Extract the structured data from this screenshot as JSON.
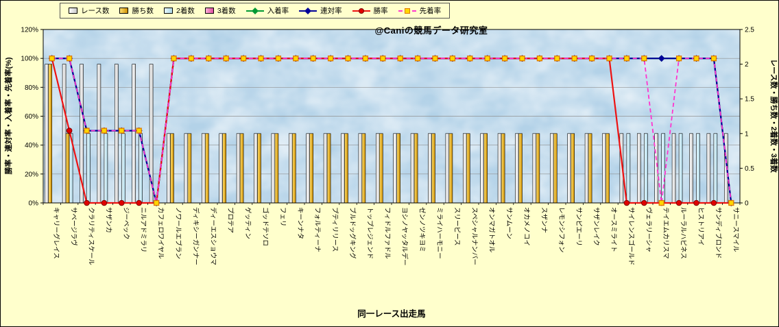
{
  "colors": {
    "page_bg": "#ffffcc",
    "plot_bg": "#b3d2e8",
    "grid": "#909090",
    "axis": "#000000",
    "watermark": "#00b7bd"
  },
  "chart_data": {
    "type": "combo (clustered bar + line)",
    "title": "",
    "x_title": "同一レース出走馬",
    "y_left_title": "勝率・連対率・入着率・先着率(%)",
    "y_right_title": "レース数・勝ち数・2着数・3着数",
    "watermark": "@Caniの競馬データ研究室",
    "legend_position": "top",
    "grid": "horizontal",
    "left_axis": {
      "min": 0,
      "max": 120,
      "step": 20,
      "suffix": "%"
    },
    "right_axis": {
      "min": 0,
      "max": 2.5,
      "step": 0.5
    },
    "categories": [
      "キャリーグレイス",
      "サベージラヴ",
      "クラリティスケール",
      "サザンカ",
      "ジーベック",
      "ニルアドミラリ",
      "カフェロワイヤル",
      "ノワールエブラン",
      "ディキシーガンナー",
      "ディーエスショウマ",
      "プロテア",
      "ゲッティン",
      "ゴッドテソロ",
      "フェリ",
      "キーンナタ",
      "フォルティーナ",
      "プティリリース",
      "ブルドッグキング",
      "トップレジェンド",
      "フィドルファドル",
      "ヨシノヤッタルデー",
      "ゼンノツキヨミ",
      "ミライハーモニー",
      "スリーピース",
      "スペシャルナンバー",
      "オンマガトオル",
      "サンムーン",
      "オカメノコイ",
      "スザンナ",
      "レモンシフォン",
      "サンピエーリ",
      "サザンレイク",
      "オースミライト",
      "サイレンスゴールド",
      "ヴェラリーシャ",
      "テイエムカリスマ",
      "ルーラルハピネス",
      "ヒストリアイ",
      "サンディブロンド",
      "サニースマイル"
    ],
    "bar_series": [
      {
        "name": "レース数",
        "key": "race_count",
        "fill_from": "#ffffff",
        "fill_to": "#c9c9c9",
        "values": [
          2,
          2,
          2,
          2,
          2,
          2,
          2,
          1,
          1,
          1,
          1,
          1,
          1,
          1,
          1,
          1,
          1,
          1,
          1,
          1,
          1,
          1,
          1,
          1,
          1,
          1,
          1,
          1,
          1,
          1,
          1,
          1,
          1,
          1,
          1,
          1,
          1,
          1,
          1,
          1
        ]
      },
      {
        "name": "勝ち数",
        "key": "win_count",
        "fill_from": "#ffe070",
        "fill_to": "#cf8f00",
        "values": [
          2,
          1,
          0,
          0,
          0,
          0,
          0,
          1,
          1,
          1,
          1,
          1,
          1,
          1,
          1,
          1,
          1,
          1,
          1,
          1,
          1,
          1,
          1,
          1,
          1,
          1,
          1,
          1,
          1,
          1,
          1,
          1,
          1,
          0,
          0,
          0,
          0,
          0,
          0,
          0
        ]
      },
      {
        "name": "2着数",
        "key": "second_count",
        "fill_from": "#e8f9fd",
        "fill_to": "#aed8e8",
        "values": [
          0,
          1,
          1,
          1,
          1,
          1,
          0,
          0,
          0,
          0,
          0,
          0,
          0,
          0,
          0,
          0,
          0,
          0,
          0,
          0,
          0,
          0,
          0,
          0,
          0,
          0,
          0,
          0,
          0,
          0,
          0,
          0,
          0,
          1,
          1,
          1,
          1,
          1,
          1,
          0
        ]
      },
      {
        "name": "3着数",
        "key": "third_count",
        "fill_from": "#ffb0d8",
        "fill_to": "#dd4fa0",
        "values": [
          0,
          0,
          0,
          0,
          0,
          0,
          0,
          0,
          0,
          0,
          0,
          0,
          0,
          0,
          0,
          0,
          0,
          0,
          0,
          0,
          0,
          0,
          0,
          0,
          0,
          0,
          0,
          0,
          0,
          0,
          0,
          0,
          0,
          0,
          0,
          0,
          0,
          0,
          0,
          0
        ]
      }
    ],
    "line_series": [
      {
        "name": "入着率",
        "key": "place_rate",
        "color": "#009933",
        "marker": "diamond",
        "marker_color": "#009933",
        "dash": false,
        "values": [
          100,
          100,
          50,
          50,
          50,
          50,
          0,
          100,
          100,
          100,
          100,
          100,
          100,
          100,
          100,
          100,
          100,
          100,
          100,
          100,
          100,
          100,
          100,
          100,
          100,
          100,
          100,
          100,
          100,
          100,
          100,
          100,
          100,
          100,
          100,
          100,
          100,
          100,
          100,
          0
        ]
      },
      {
        "name": "連対率",
        "key": "top2_rate",
        "color": "#000099",
        "marker": "diamond",
        "marker_color": "#000099",
        "dash": false,
        "values": [
          100,
          100,
          50,
          50,
          50,
          50,
          0,
          100,
          100,
          100,
          100,
          100,
          100,
          100,
          100,
          100,
          100,
          100,
          100,
          100,
          100,
          100,
          100,
          100,
          100,
          100,
          100,
          100,
          100,
          100,
          100,
          100,
          100,
          100,
          100,
          100,
          100,
          100,
          100,
          0
        ]
      },
      {
        "name": "勝率",
        "key": "win_rate",
        "color": "#ee1111",
        "marker": "circle",
        "marker_color": "#e00000",
        "marker_border": "#7a0000",
        "dash": false,
        "values": [
          100,
          50,
          0,
          0,
          0,
          0,
          0,
          100,
          100,
          100,
          100,
          100,
          100,
          100,
          100,
          100,
          100,
          100,
          100,
          100,
          100,
          100,
          100,
          100,
          100,
          100,
          100,
          100,
          100,
          100,
          100,
          100,
          100,
          0,
          0,
          0,
          0,
          0,
          0,
          0
        ]
      },
      {
        "name": "先着率",
        "key": "ahead_rate",
        "color": "#ff35cf",
        "marker": "square",
        "marker_color": "#ffd700",
        "marker_border": "#e07800",
        "dash": true,
        "values": [
          100,
          100,
          50,
          50,
          50,
          50,
          0,
          100,
          100,
          100,
          100,
          100,
          100,
          100,
          100,
          100,
          100,
          100,
          100,
          100,
          100,
          100,
          100,
          100,
          100,
          100,
          100,
          100,
          100,
          100,
          100,
          100,
          100,
          100,
          100,
          0,
          100,
          100,
          100,
          0
        ]
      }
    ]
  }
}
